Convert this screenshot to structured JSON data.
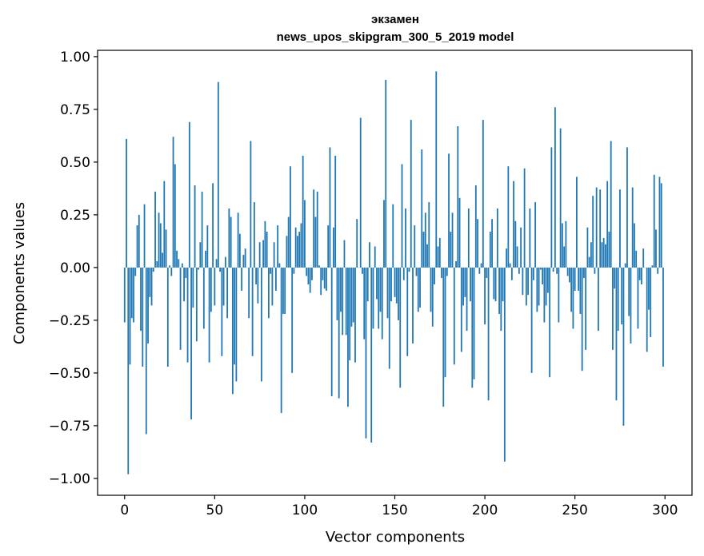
{
  "chart_data": {
    "type": "bar",
    "title": "экзамен",
    "subtitle": "news_upos_skipgram_300_5_2019 model",
    "xlabel": "Vector components",
    "ylabel": "Components values",
    "xlim": [
      -15,
      315
    ],
    "ylim": [
      -1.08,
      1.03
    ],
    "xticks": [
      0,
      50,
      100,
      150,
      200,
      250,
      300
    ],
    "xtick_labels": [
      "0",
      "50",
      "100",
      "150",
      "200",
      "250",
      "300"
    ],
    "yticks": [
      1.0,
      0.75,
      0.5,
      0.25,
      0.0,
      -0.25,
      -0.5,
      -0.75,
      -1.0
    ],
    "ytick_labels": [
      "1.00",
      "0.75",
      "0.50",
      "0.25",
      "0.00",
      "−0.25",
      "−0.50",
      "−0.75",
      "−1.00"
    ],
    "grid": false,
    "color": "#1f77b4",
    "values": [
      -0.26,
      0.61,
      -0.98,
      -0.46,
      -0.24,
      -0.26,
      -0.04,
      0.2,
      0.25,
      -0.3,
      -0.47,
      0.3,
      -0.79,
      -0.36,
      -0.14,
      -0.18,
      -0.02,
      0.36,
      0.03,
      0.26,
      0.21,
      0.07,
      0.41,
      0.18,
      -0.47,
      0.01,
      -0.04,
      0.62,
      0.49,
      0.08,
      0.04,
      -0.39,
      0.02,
      -0.16,
      -0.05,
      -0.45,
      0.69,
      -0.72,
      -0.19,
      0.39,
      -0.35,
      -0.01,
      0.12,
      0.36,
      -0.29,
      0.08,
      0.2,
      -0.45,
      -0.21,
      0.4,
      -0.18,
      0.04,
      0.88,
      -0.02,
      -0.42,
      -0.18,
      0.05,
      -0.24,
      0.28,
      0.24,
      -0.6,
      -0.46,
      -0.54,
      0.26,
      0.16,
      -0.11,
      0.06,
      0.09,
      0.0,
      -0.24,
      0.6,
      -0.42,
      0.31,
      -0.08,
      -0.17,
      0.12,
      -0.54,
      0.13,
      0.22,
      0.17,
      -0.24,
      -0.03,
      -0.18,
      0.12,
      -0.11,
      0.2,
      0.02,
      -0.69,
      -0.22,
      -0.22,
      0.15,
      0.24,
      0.48,
      -0.5,
      -0.03,
      0.19,
      0.15,
      0.17,
      0.21,
      0.53,
      0.32,
      -0.04,
      -0.08,
      -0.12,
      -0.06,
      0.37,
      0.24,
      0.36,
      0.01,
      -0.13,
      -0.06,
      -0.1,
      -0.11,
      0.2,
      0.57,
      -0.61,
      0.19,
      0.53,
      -0.25,
      -0.62,
      -0.21,
      -0.32,
      0.13,
      -0.32,
      -0.66,
      -0.44,
      -0.28,
      -0.26,
      -0.45,
      0.23,
      0.0,
      0.71,
      -0.03,
      -0.34,
      -0.81,
      -0.16,
      0.12,
      -0.83,
      -0.29,
      0.1,
      -0.15,
      -0.29,
      -0.21,
      -0.34,
      0.32,
      0.89,
      -0.24,
      -0.48,
      -0.16,
      0.3,
      -0.14,
      -0.17,
      -0.25,
      -0.57,
      0.49,
      -0.06,
      0.28,
      -0.42,
      -0.02,
      0.7,
      -0.36,
      0.2,
      -0.04,
      -0.21,
      -0.19,
      0.56,
      0.17,
      0.26,
      0.11,
      0.31,
      -0.21,
      -0.28,
      -0.08,
      0.93,
      0.1,
      0.14,
      -0.05,
      -0.66,
      -0.52,
      -0.04,
      0.54,
      0.17,
      0.26,
      -0.46,
      0.03,
      0.67,
      0.33,
      -0.4,
      -0.18,
      -0.14,
      -0.3,
      0.28,
      -0.16,
      -0.57,
      -0.53,
      0.39,
      0.23,
      -0.03,
      0.02,
      0.7,
      -0.27,
      -0.05,
      -0.63,
      0.17,
      0.23,
      -0.15,
      -0.16,
      0.28,
      -0.22,
      -0.3,
      -0.16,
      -0.92,
      0.09,
      0.48,
      0.02,
      -0.06,
      0.41,
      0.22,
      0.1,
      -0.03,
      0.19,
      -0.13,
      0.47,
      -0.18,
      -0.13,
      0.28,
      -0.5,
      -0.06,
      0.31,
      -0.21,
      -0.18,
      -0.01,
      -0.08,
      -0.26,
      -0.18,
      -0.12,
      -0.52,
      0.57,
      -0.02,
      0.76,
      -0.03,
      -0.26,
      0.66,
      0.21,
      0.1,
      0.22,
      -0.04,
      -0.07,
      -0.21,
      -0.29,
      -0.11,
      0.43,
      -0.11,
      -0.22,
      -0.49,
      -0.05,
      -0.39,
      0.19,
      0.05,
      0.12,
      0.34,
      -0.03,
      0.38,
      -0.3,
      0.37,
      0.12,
      0.14,
      0.11,
      0.41,
      0.17,
      0.6,
      -0.39,
      -0.1,
      -0.63,
      -0.3,
      0.37,
      -0.27,
      -0.75,
      0.02,
      0.57,
      -0.23,
      -0.36,
      0.38,
      0.21,
      0.08,
      -0.29,
      -0.06,
      -0.08,
      0.09,
      0.0,
      -0.4,
      -0.2,
      -0.33,
      0.01,
      0.44,
      0.18,
      -0.03,
      0.43,
      0.4,
      -0.47
    ]
  }
}
